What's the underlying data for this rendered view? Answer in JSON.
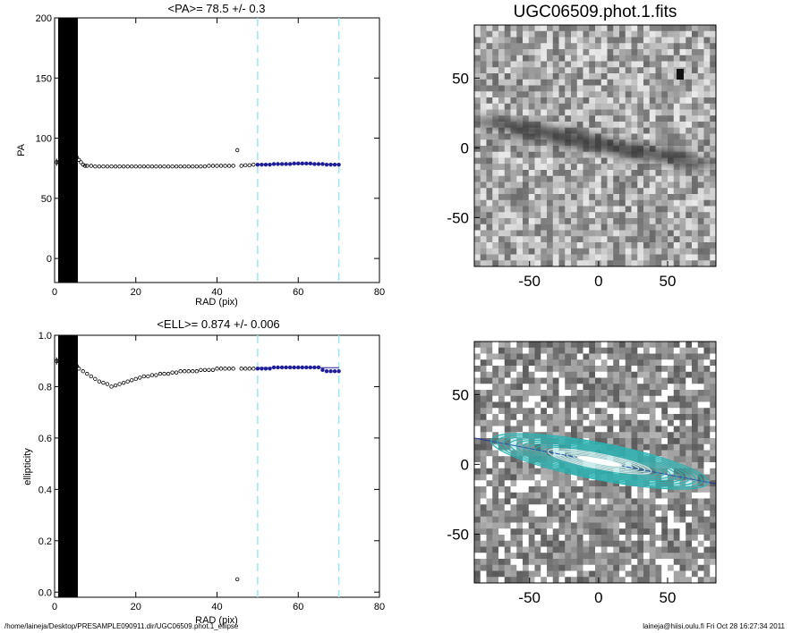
{
  "chart_data": [
    {
      "type": "scatter",
      "title": "<PA>=  78.5 +/-   0.3",
      "xlabel": "RAD (pix)",
      "ylabel": "PA",
      "xlim": [
        0,
        80
      ],
      "ylim": [
        -20,
        200
      ],
      "xticks": [
        "0",
        "20",
        "40",
        "60",
        "80"
      ],
      "yticks": [
        "0",
        "50",
        "100",
        "150",
        "200"
      ],
      "vlines": [
        50,
        70
      ],
      "fit_mean": 78.5,
      "series": [
        {
          "x": [
            0.5,
            1,
            1.5,
            2,
            2.5,
            3,
            3.5,
            4,
            4.5,
            5,
            5.5,
            6,
            6.5,
            7,
            7.5,
            8,
            9,
            10,
            11,
            12,
            13,
            14,
            15,
            16,
            17,
            18,
            19,
            20,
            21,
            22,
            23,
            24,
            25,
            26,
            27,
            28,
            29,
            30,
            31,
            32,
            33,
            34,
            35,
            36,
            37,
            38,
            39,
            40,
            41,
            42,
            43,
            44,
            45,
            46,
            47,
            48,
            49
          ],
          "y": [
            80,
            80,
            81,
            81,
            81,
            82,
            82,
            83,
            84,
            85,
            84,
            82,
            80,
            78,
            77,
            77,
            77,
            76.5,
            76.5,
            76.5,
            76.5,
            76.5,
            76.5,
            76.5,
            76.5,
            76.5,
            76.5,
            76.5,
            76.5,
            76.5,
            76.5,
            76.5,
            76.5,
            76.5,
            76.5,
            76.5,
            76.5,
            76.5,
            76.5,
            76.5,
            76.5,
            76.5,
            76.5,
            76.5,
            76.5,
            77,
            77,
            77,
            77,
            77,
            77,
            77,
            90,
            77,
            77.5,
            77.5,
            78
          ]
        },
        {
          "x": [
            50,
            51,
            52,
            53,
            54,
            55,
            56,
            57,
            58,
            59,
            60,
            61,
            62,
            63,
            64,
            65,
            66,
            67,
            68,
            69,
            70
          ],
          "y": [
            78,
            78,
            78,
            78,
            78.5,
            78.5,
            78.5,
            78.5,
            78.5,
            79,
            79,
            79,
            79,
            79,
            78.5,
            78.5,
            78.5,
            78,
            78,
            78,
            78
          ]
        }
      ]
    },
    {
      "type": "scatter",
      "title": "<ELL>= 0.874 +/-  0.006",
      "xlabel": "RAD (pix)",
      "ylabel": "ellipticity",
      "xlim": [
        0,
        80
      ],
      "ylim": [
        -0.02,
        1.0
      ],
      "xticks": [
        "0",
        "20",
        "40",
        "60",
        "80"
      ],
      "yticks": [
        "0.0",
        "0.2",
        "0.4",
        "0.6",
        "0.8",
        "1.0"
      ],
      "vlines": [
        50,
        70
      ],
      "fit_mean": 0.874,
      "series": [
        {
          "x": [
            0.5,
            1,
            1.5,
            2,
            2.5,
            3,
            3.5,
            4,
            4.5,
            5,
            5.5,
            6,
            7,
            8,
            9,
            10,
            11,
            12,
            13,
            14,
            15,
            16,
            17,
            18,
            19,
            20,
            21,
            22,
            23,
            24,
            25,
            26,
            27,
            28,
            29,
            30,
            31,
            32,
            33,
            34,
            35,
            36,
            37,
            38,
            39,
            40,
            41,
            42,
            43,
            44,
            45,
            46,
            47,
            48,
            49
          ],
          "y": [
            0.9,
            0.9,
            0.9,
            0.9,
            0.9,
            0.9,
            0.9,
            0.9,
            0.89,
            0.89,
            0.88,
            0.87,
            0.86,
            0.85,
            0.84,
            0.83,
            0.82,
            0.815,
            0.81,
            0.8,
            0.805,
            0.81,
            0.815,
            0.82,
            0.825,
            0.83,
            0.835,
            0.84,
            0.84,
            0.845,
            0.845,
            0.85,
            0.85,
            0.85,
            0.855,
            0.855,
            0.86,
            0.86,
            0.86,
            0.86,
            0.86,
            0.865,
            0.865,
            0.865,
            0.865,
            0.87,
            0.87,
            0.87,
            0.87,
            0.87,
            0.05,
            0.87,
            0.87,
            0.87,
            0.87
          ]
        },
        {
          "x": [
            50,
            51,
            52,
            53,
            54,
            55,
            56,
            57,
            58,
            59,
            60,
            61,
            62,
            63,
            64,
            65,
            66,
            67,
            68,
            69,
            70
          ],
          "y": [
            0.87,
            0.87,
            0.87,
            0.87,
            0.875,
            0.875,
            0.875,
            0.875,
            0.875,
            0.875,
            0.875,
            0.875,
            0.875,
            0.875,
            0.875,
            0.875,
            0.865,
            0.86,
            0.86,
            0.86,
            0.86
          ]
        }
      ]
    },
    {
      "type": "heatmap",
      "title": "UGC06509.phot.1.fits",
      "xlim": [
        -90,
        85
      ],
      "ylim": [
        -85,
        88
      ],
      "xticks": [
        "-50",
        "0",
        "50"
      ],
      "yticks": [
        "50",
        "0",
        "-50"
      ]
    },
    {
      "type": "heatmap",
      "title": "",
      "xlim": [
        -90,
        85
      ],
      "ylim": [
        -85,
        88
      ],
      "xticks": [
        "-50",
        "0",
        "50"
      ],
      "yticks": [
        "50",
        "0",
        "-50"
      ]
    }
  ],
  "footer": {
    "left": "/home/laineja/Desktop/PRESAMPLE090911.dir/UGC06509.phot.1_ellipse",
    "right": "laineja@hiisi.oulu.fi  Fri Oct 28 16:27:34 2011"
  },
  "colors": {
    "inner_points": "#000000",
    "fit_points": "#1f1f9a",
    "guide_lines": "#9ee6f0",
    "contours": "#2ab3b3"
  }
}
